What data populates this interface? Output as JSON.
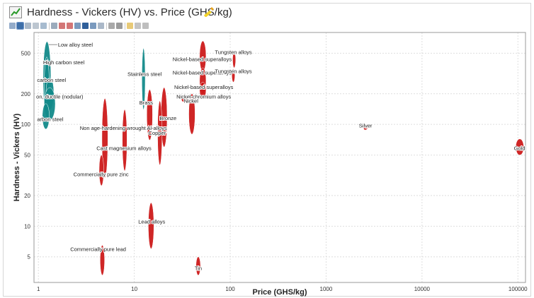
{
  "window": {
    "title": "Hardness - Vickers (HV) vs. Price (GHS/kg)"
  },
  "toolbar": {
    "icons": [
      "list-icon",
      "select-icon",
      "lasso-icon",
      "zoom-box-icon",
      "zoom-fit-icon",
      "filter-icon",
      "delete-icon",
      "delete-all-icon",
      "pin-icon",
      "highlight-icon",
      "hide-icon",
      "label-icon",
      "print-icon",
      "dropdown-icon",
      "star-icon",
      "link-icon",
      "pen-icon"
    ]
  },
  "colors": {
    "red": "#cc1a1a",
    "teal": "#138a8a",
    "grid": "#dedede",
    "axis": "#555555"
  },
  "chart_data": {
    "type": "scatter",
    "title": "Hardness - Vickers (HV) vs. Price (GHS/kg)",
    "xlabel": "Price (GHS/kg)",
    "ylabel": "Hardness - Vickers (HV)",
    "xscale": "log",
    "yscale": "log",
    "xlim": [
      0.9,
      120000
    ],
    "ylim": [
      2.8,
      800
    ],
    "xticks": [
      1,
      10,
      100,
      1000,
      10000,
      100000
    ],
    "xtick_labels": [
      "1",
      "10",
      "100",
      "1000",
      "10000",
      "100000"
    ],
    "yticks": [
      5,
      10,
      20,
      50,
      100,
      200,
      500
    ],
    "ytick_labels": [
      "5",
      "10",
      "20",
      "50",
      "100",
      "200",
      "500"
    ],
    "grid": true,
    "materials": [
      {
        "name": "Low alloy steel",
        "color": "teal",
        "x": [
          1.12,
          1.35
        ],
        "y": [
          120,
          650
        ]
      },
      {
        "name": "High carbon steel",
        "color": "teal",
        "x": [
          1.15,
          1.3
        ],
        "y": [
          110,
          460
        ]
      },
      {
        "name": "carbon steel",
        "color": "teal",
        "x": [
          1.2,
          1.45
        ],
        "y": [
          140,
          290
        ]
      },
      {
        "name": "on, ductile (nodular)",
        "color": "teal",
        "x": [
          1.15,
          1.5
        ],
        "y": [
          110,
          230
        ]
      },
      {
        "name": "arbon steel",
        "color": "teal",
        "x": [
          1.1,
          1.3
        ],
        "y": [
          90,
          160
        ]
      },
      {
        "name": "Stainless steel",
        "color": "teal",
        "x": [
          12,
          13
        ],
        "y": [
          140,
          560
        ]
      },
      {
        "name": "Non age-hardening wrought Al-alloys",
        "color": "red",
        "x": [
          4.6,
          5.3
        ],
        "y": [
          30,
          180
        ]
      },
      {
        "name": "Cast magnesium alloys",
        "color": "red",
        "x": [
          7.5,
          8.4
        ],
        "y": [
          35,
          140
        ]
      },
      {
        "name": "Commercially pure zinc",
        "color": "red",
        "x": [
          4.3,
          4.8
        ],
        "y": [
          25,
          50
        ]
      },
      {
        "name": "Brass",
        "color": "red",
        "x": [
          13.5,
          15.5
        ],
        "y": [
          70,
          220
        ]
      },
      {
        "name": "Bronze",
        "color": "red",
        "x": [
          19,
          22
        ],
        "y": [
          60,
          230
        ]
      },
      {
        "name": "Copper",
        "color": "red",
        "x": [
          17.5,
          19.5
        ],
        "y": [
          40,
          170
        ]
      },
      {
        "name": "Nickel",
        "color": "red",
        "x": [
          37,
          43
        ],
        "y": [
          80,
          200
        ]
      },
      {
        "name": "Nickel-based superalloys",
        "color": "red",
        "x": [
          48,
          56
        ],
        "y": [
          330,
          660
        ]
      },
      {
        "name": "Nickel-based superalloys",
        "color": "red",
        "x": [
          48,
          56
        ],
        "y": [
          200,
          360
        ]
      },
      {
        "name": "Nickel-based superalloys",
        "color": "red",
        "x": [
          48,
          56
        ],
        "y": [
          180,
          260
        ]
      },
      {
        "name": "Nickel-chromium alloys",
        "color": "red",
        "x": [
          31,
          36
        ],
        "y": [
          165,
          190
        ]
      },
      {
        "name": "Tungsten alloys",
        "color": "red",
        "x": [
          106,
          114
        ],
        "y": [
          360,
          520
        ]
      },
      {
        "name": "Tungsten alloys",
        "color": "red",
        "x": [
          104,
          112
        ],
        "y": [
          260,
          350
        ]
      },
      {
        "name": "Lead alloys",
        "color": "red",
        "x": [
          14,
          16
        ],
        "y": [
          6,
          17
        ]
      },
      {
        "name": "Commercially pure lead",
        "color": "red",
        "x": [
          4.4,
          4.9
        ],
        "y": [
          3.3,
          6.5
        ]
      },
      {
        "name": "Tin",
        "color": "red",
        "x": [
          44,
          49
        ],
        "y": [
          3.3,
          5
        ]
      },
      {
        "name": "Silver",
        "color": "red",
        "x": [
          2450,
          2700
        ],
        "y": [
          88,
          98
        ]
      },
      {
        "name": "Gold",
        "color": "red",
        "x": [
          95000,
          115000
        ],
        "y": [
          50,
          72
        ]
      }
    ],
    "labels": [
      {
        "text": "Low alloy steel",
        "x": 1.6,
        "y": 580,
        "anchor": "start",
        "leader": true,
        "leader_x": 1.28
      },
      {
        "text": "High carbon steel",
        "x": 1.12,
        "y": 390,
        "anchor": "start"
      },
      {
        "text": "carbon steel",
        "x": 0.97,
        "y": 262,
        "anchor": "start"
      },
      {
        "text": "on, ductile (nodular)",
        "x": 0.95,
        "y": 180,
        "anchor": "start"
      },
      {
        "text": "arbon steel",
        "x": 0.97,
        "y": 108,
        "anchor": "start"
      },
      {
        "text": "Stainless steel",
        "x": 12.8,
        "y": 300,
        "anchor": "middle"
      },
      {
        "text": "Nickel-based superalloys",
        "x": 51,
        "y": 420,
        "anchor": "middle"
      },
      {
        "text": "Tungsten alloys",
        "x": 108,
        "y": 490,
        "anchor": "middle"
      },
      {
        "text": "Nickel-based superalloys",
        "x": 51,
        "y": 310,
        "anchor": "middle"
      },
      {
        "text": "Tungsten alloys",
        "x": 108,
        "y": 320,
        "anchor": "middle"
      },
      {
        "text": "Nickel-based superalloys",
        "x": 53,
        "y": 222,
        "anchor": "middle"
      },
      {
        "text": "Nickel-chromium alloys",
        "x": 53,
        "y": 179,
        "anchor": "middle"
      },
      {
        "text": "Nickel",
        "x": 39,
        "y": 163,
        "anchor": "middle"
      },
      {
        "text": "Brass",
        "x": 13.3,
        "y": 157,
        "anchor": "middle"
      },
      {
        "text": "Bronze",
        "x": 22.5,
        "y": 110,
        "anchor": "middle"
      },
      {
        "text": "Non age-hardening wrought Al-alloys",
        "x": 7.7,
        "y": 88,
        "anchor": "middle"
      },
      {
        "text": "Copper",
        "x": 17.3,
        "y": 79,
        "anchor": "middle"
      },
      {
        "text": "Cast magnesium alloys",
        "x": 7.8,
        "y": 56,
        "anchor": "middle"
      },
      {
        "text": "Commercially pure zinc",
        "x": 4.5,
        "y": 31,
        "anchor": "middle"
      },
      {
        "text": "Silver",
        "x": 2580,
        "y": 93,
        "anchor": "middle"
      },
      {
        "text": "Gold",
        "x": 104000,
        "y": 56,
        "anchor": "middle"
      },
      {
        "text": "Lead alloys",
        "x": 15.2,
        "y": 10.6,
        "anchor": "middle"
      },
      {
        "text": "Commercially pure lead",
        "x": 4.2,
        "y": 5.7,
        "anchor": "middle"
      },
      {
        "text": "Tin",
        "x": 46.5,
        "y": 3.7,
        "anchor": "middle"
      }
    ]
  }
}
